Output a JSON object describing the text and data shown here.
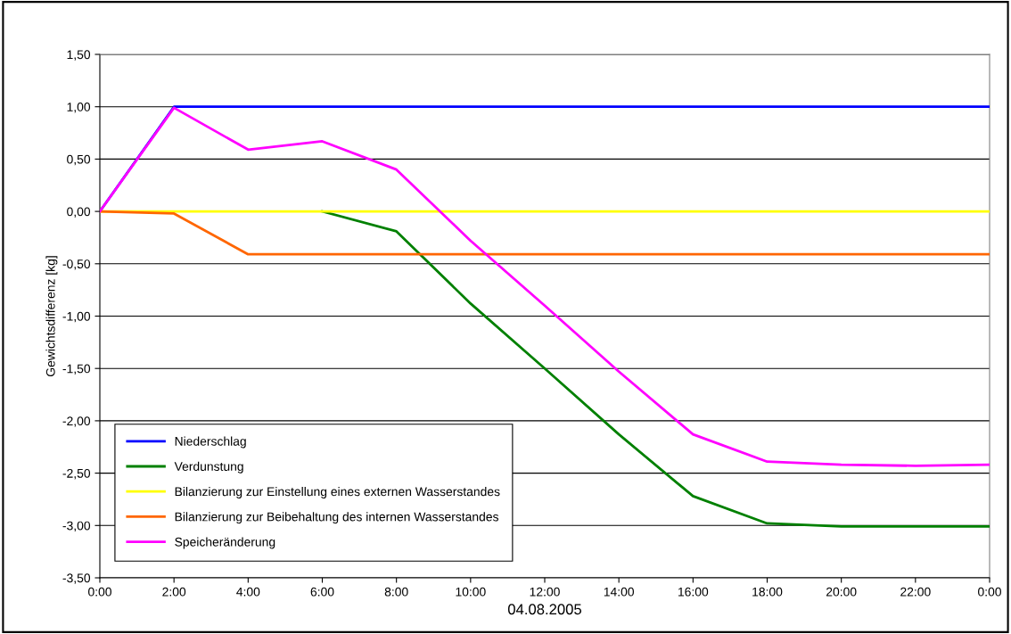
{
  "chart_data": {
    "type": "line",
    "xlabel": "04.08.2005",
    "ylabel": "Gewichtsdifferenz [kg]",
    "categories": [
      "0:00",
      "2:00",
      "4:00",
      "6:00",
      "8:00",
      "10:00",
      "12:00",
      "14:00",
      "16:00",
      "18:00",
      "20:00",
      "22:00",
      "0:00"
    ],
    "series": [
      {
        "name": "Niederschlag",
        "color": "#0000ff",
        "values": [
          0,
          1,
          1,
          1,
          1,
          1,
          1,
          1,
          1,
          1,
          1,
          1,
          1
        ]
      },
      {
        "name": "Verdunstung",
        "color": "#008000",
        "values": [
          null,
          null,
          null,
          0,
          -0.19,
          -0.88,
          -1.5,
          -2.13,
          -2.72,
          -2.98,
          -3.01,
          -3.01,
          -3.01
        ]
      },
      {
        "name": "Bilanzierung zur Einstellung eines externen Wasserstandes",
        "color": "#ffff00",
        "values": [
          0,
          0,
          0,
          0,
          0,
          0,
          0,
          0,
          0,
          0,
          0,
          0,
          0
        ]
      },
      {
        "name": "Bilanzierung zur Beibehaltung des internen Wasserstandes",
        "color": "#ff6600",
        "values": [
          0,
          -0.02,
          -0.41,
          -0.41,
          -0.41,
          -0.41,
          -0.41,
          -0.41,
          -0.41,
          -0.41,
          -0.41,
          -0.41,
          -0.41
        ]
      },
      {
        "name": "Speicheränderung",
        "color": "#ff00ff",
        "values": [
          0,
          0.99,
          0.59,
          0.67,
          0.4,
          -0.28,
          -0.9,
          -1.53,
          -2.13,
          -2.39,
          -2.42,
          -2.43,
          -2.42
        ]
      }
    ],
    "ylim": [
      -3.5,
      1.5
    ],
    "yticks": [
      {
        "value": -3.5,
        "label": "-3,50"
      },
      {
        "value": -3.0,
        "label": "-3,00"
      },
      {
        "value": -2.5,
        "label": "-2,50"
      },
      {
        "value": -2.0,
        "label": "-2,00"
      },
      {
        "value": -1.5,
        "label": "-1,50"
      },
      {
        "value": -1.0,
        "label": "-1,00"
      },
      {
        "value": -0.5,
        "label": "-0,50"
      },
      {
        "value": 0,
        "label": "0,00"
      },
      {
        "value": 0.5,
        "label": "0,50"
      },
      {
        "value": 1.0,
        "label": "1,00"
      },
      {
        "value": 1.5,
        "label": "1,50"
      }
    ],
    "grid": "y",
    "legend": "bottom left",
    "marker": "none",
    "line_style": "solid"
  }
}
